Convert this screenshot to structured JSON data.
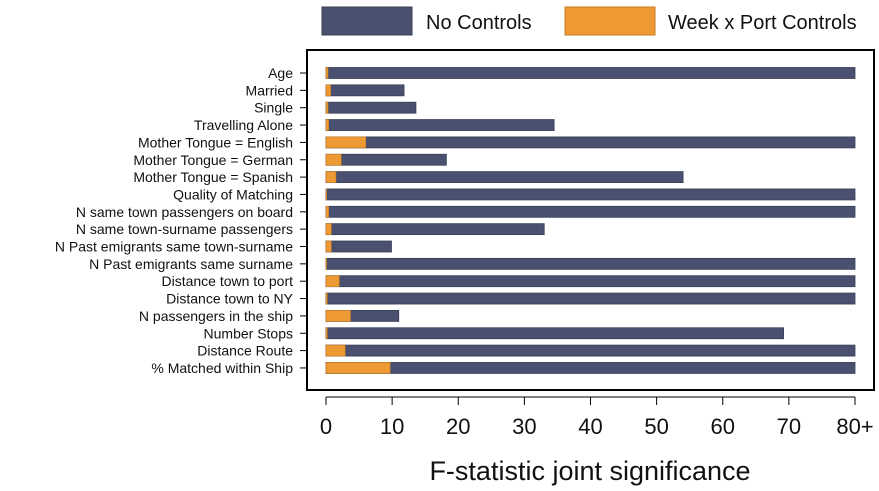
{
  "chart_data": {
    "type": "bar",
    "orientation": "horizontal",
    "layout": "overlaid",
    "title": "",
    "xlabel": "F-statistic joint significance",
    "ylabel": "",
    "xlim": [
      0,
      80
    ],
    "xticks": [
      0,
      10,
      20,
      30,
      40,
      50,
      60,
      70,
      80
    ],
    "xtick_labels": [
      "0",
      "10",
      "20",
      "30",
      "40",
      "50",
      "60",
      "70",
      "80+"
    ],
    "legend_position": "top",
    "grid": false,
    "categories": [
      "Age",
      "Married",
      "Single",
      "Travelling Alone",
      "Mother Tongue = English",
      "Mother Tongue = German",
      "Mother Tongue = Spanish",
      "Quality of Matching",
      "N same town passengers on board",
      "N same town-surname passengers",
      "N Past emigrants same town-surname",
      "N Past emigrants same surname",
      "Distance town to port",
      "Distance town to NY",
      "N passengers in the ship",
      "Number Stops",
      "Distance Route",
      "% Matched within Ship"
    ],
    "series": [
      {
        "name": "No Controls",
        "color": "#4a5170",
        "values": [
          80,
          11.8,
          13.6,
          34.5,
          80,
          18.2,
          54,
          80,
          80,
          33,
          9.9,
          80,
          80,
          80,
          11,
          69.2,
          80,
          80
        ]
      },
      {
        "name": "Week x Port Controls",
        "color": "#ee9a34",
        "values": [
          0.3,
          0.7,
          0.3,
          0.4,
          6,
          2.3,
          1.5,
          0.1,
          0.4,
          0.8,
          0.8,
          0.1,
          2,
          0.2,
          3.7,
          0.2,
          2.9,
          9.7
        ]
      }
    ]
  }
}
